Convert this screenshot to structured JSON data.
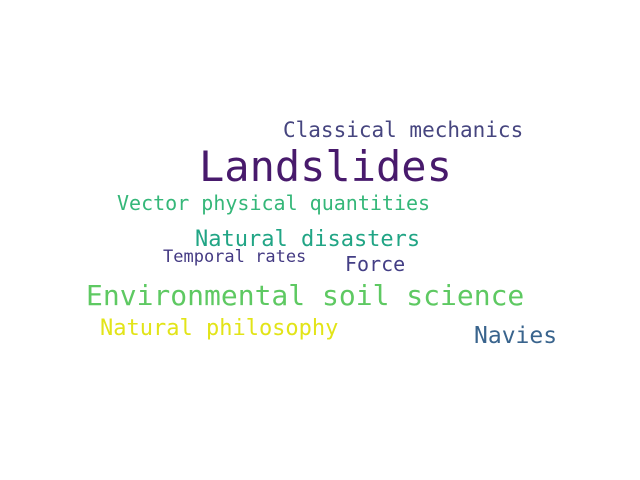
{
  "words": [
    {
      "text": "Landslides",
      "color": "#481a6c"
    },
    {
      "text": "Classical mechanics",
      "color": "#46457f"
    },
    {
      "text": "Vector physical quantities",
      "color": "#35b779"
    },
    {
      "text": "Natural disasters",
      "color": "#21a585"
    },
    {
      "text": "Temporal rates",
      "color": "#443a83"
    },
    {
      "text": "Force",
      "color": "#433e85"
    },
    {
      "text": "Environmental soil science",
      "color": "#5ec962"
    },
    {
      "text": "Natural philosophy",
      "color": "#e2e418"
    },
    {
      "text": "Navies",
      "color": "#39648d"
    }
  ]
}
